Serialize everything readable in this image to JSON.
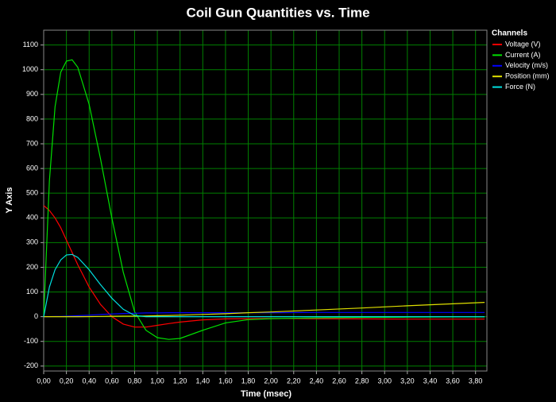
{
  "chart_data": {
    "type": "line",
    "title": "Coil Gun Quantities vs. Time",
    "x_label": "Time (msec)",
    "y_label": "Y Axis",
    "legend_title": "Channels",
    "legend": "right",
    "grid": true,
    "grid_color": "#008000",
    "x": [
      0,
      0.05,
      0.1,
      0.15,
      0.2,
      0.25,
      0.3,
      0.4,
      0.5,
      0.6,
      0.7,
      0.8,
      0.9,
      1.0,
      1.1,
      1.2,
      1.4,
      1.6,
      1.8,
      2.0,
      2.4,
      2.8,
      3.2,
      3.6,
      3.88
    ],
    "series": [
      {
        "name": "Voltage (V)",
        "color": "#ff0000",
        "values": [
          450,
          430,
          400,
          360,
          310,
          260,
          210,
          120,
          50,
          0,
          -30,
          -42,
          -42,
          -35,
          -28,
          -22,
          -13,
          -9,
          -8,
          -7,
          -8,
          -9,
          -10,
          -10,
          -10
        ]
      },
      {
        "name": "Current (A)",
        "color": "#00e000",
        "values": [
          0,
          550,
          850,
          990,
          1035,
          1040,
          1010,
          860,
          640,
          400,
          180,
          20,
          -55,
          -85,
          -92,
          -88,
          -55,
          -25,
          -12,
          -8,
          -5,
          -3,
          -2,
          -1,
          -1
        ]
      },
      {
        "name": "Velocity (m/s)",
        "color": "#0000ff",
        "values": [
          0,
          0,
          1,
          1,
          2,
          3,
          4,
          6,
          9,
          11,
          13,
          14,
          15,
          15,
          16,
          16,
          16,
          16,
          16,
          16,
          17,
          17,
          17,
          17,
          17
        ]
      },
      {
        "name": "Position (mm)",
        "color": "#e0e000",
        "values": [
          0,
          0,
          0,
          0,
          0,
          0,
          0,
          0.5,
          1,
          1.5,
          2,
          2,
          3,
          4,
          5,
          6,
          9,
          12,
          16,
          19,
          27,
          35,
          44,
          52,
          58
        ]
      },
      {
        "name": "Force (N)",
        "color": "#00e0e0",
        "values": [
          0,
          120,
          190,
          230,
          250,
          252,
          240,
          190,
          130,
          75,
          30,
          5,
          0,
          0,
          0,
          0,
          0,
          0,
          0,
          0,
          0,
          0,
          0,
          0,
          0
        ]
      }
    ],
    "xlim": [
      0,
      3.9
    ],
    "ylim": [
      -220,
      1160
    ],
    "xticks": [
      {
        "value": 0,
        "label": "0,00"
      },
      {
        "value": 0.2,
        "label": "0,20"
      },
      {
        "value": 0.4,
        "label": "0,40"
      },
      {
        "value": 0.6,
        "label": "0,60"
      },
      {
        "value": 0.8,
        "label": "0,80"
      },
      {
        "value": 1.0,
        "label": "1,00"
      },
      {
        "value": 1.2,
        "label": "1,20"
      },
      {
        "value": 1.4,
        "label": "1,40"
      },
      {
        "value": 1.6,
        "label": "1,60"
      },
      {
        "value": 1.8,
        "label": "1,80"
      },
      {
        "value": 2.0,
        "label": "2,00"
      },
      {
        "value": 2.2,
        "label": "2,20"
      },
      {
        "value": 2.4,
        "label": "2,40"
      },
      {
        "value": 2.6,
        "label": "2,60"
      },
      {
        "value": 2.8,
        "label": "2,80"
      },
      {
        "value": 3.0,
        "label": "3,00"
      },
      {
        "value": 3.2,
        "label": "3,20"
      },
      {
        "value": 3.4,
        "label": "3,40"
      },
      {
        "value": 3.6,
        "label": "3,60"
      },
      {
        "value": 3.8,
        "label": "3,80"
      }
    ],
    "yticks": [
      -200,
      -100,
      0,
      100,
      200,
      300,
      400,
      500,
      600,
      700,
      800,
      900,
      1000,
      1100
    ]
  }
}
